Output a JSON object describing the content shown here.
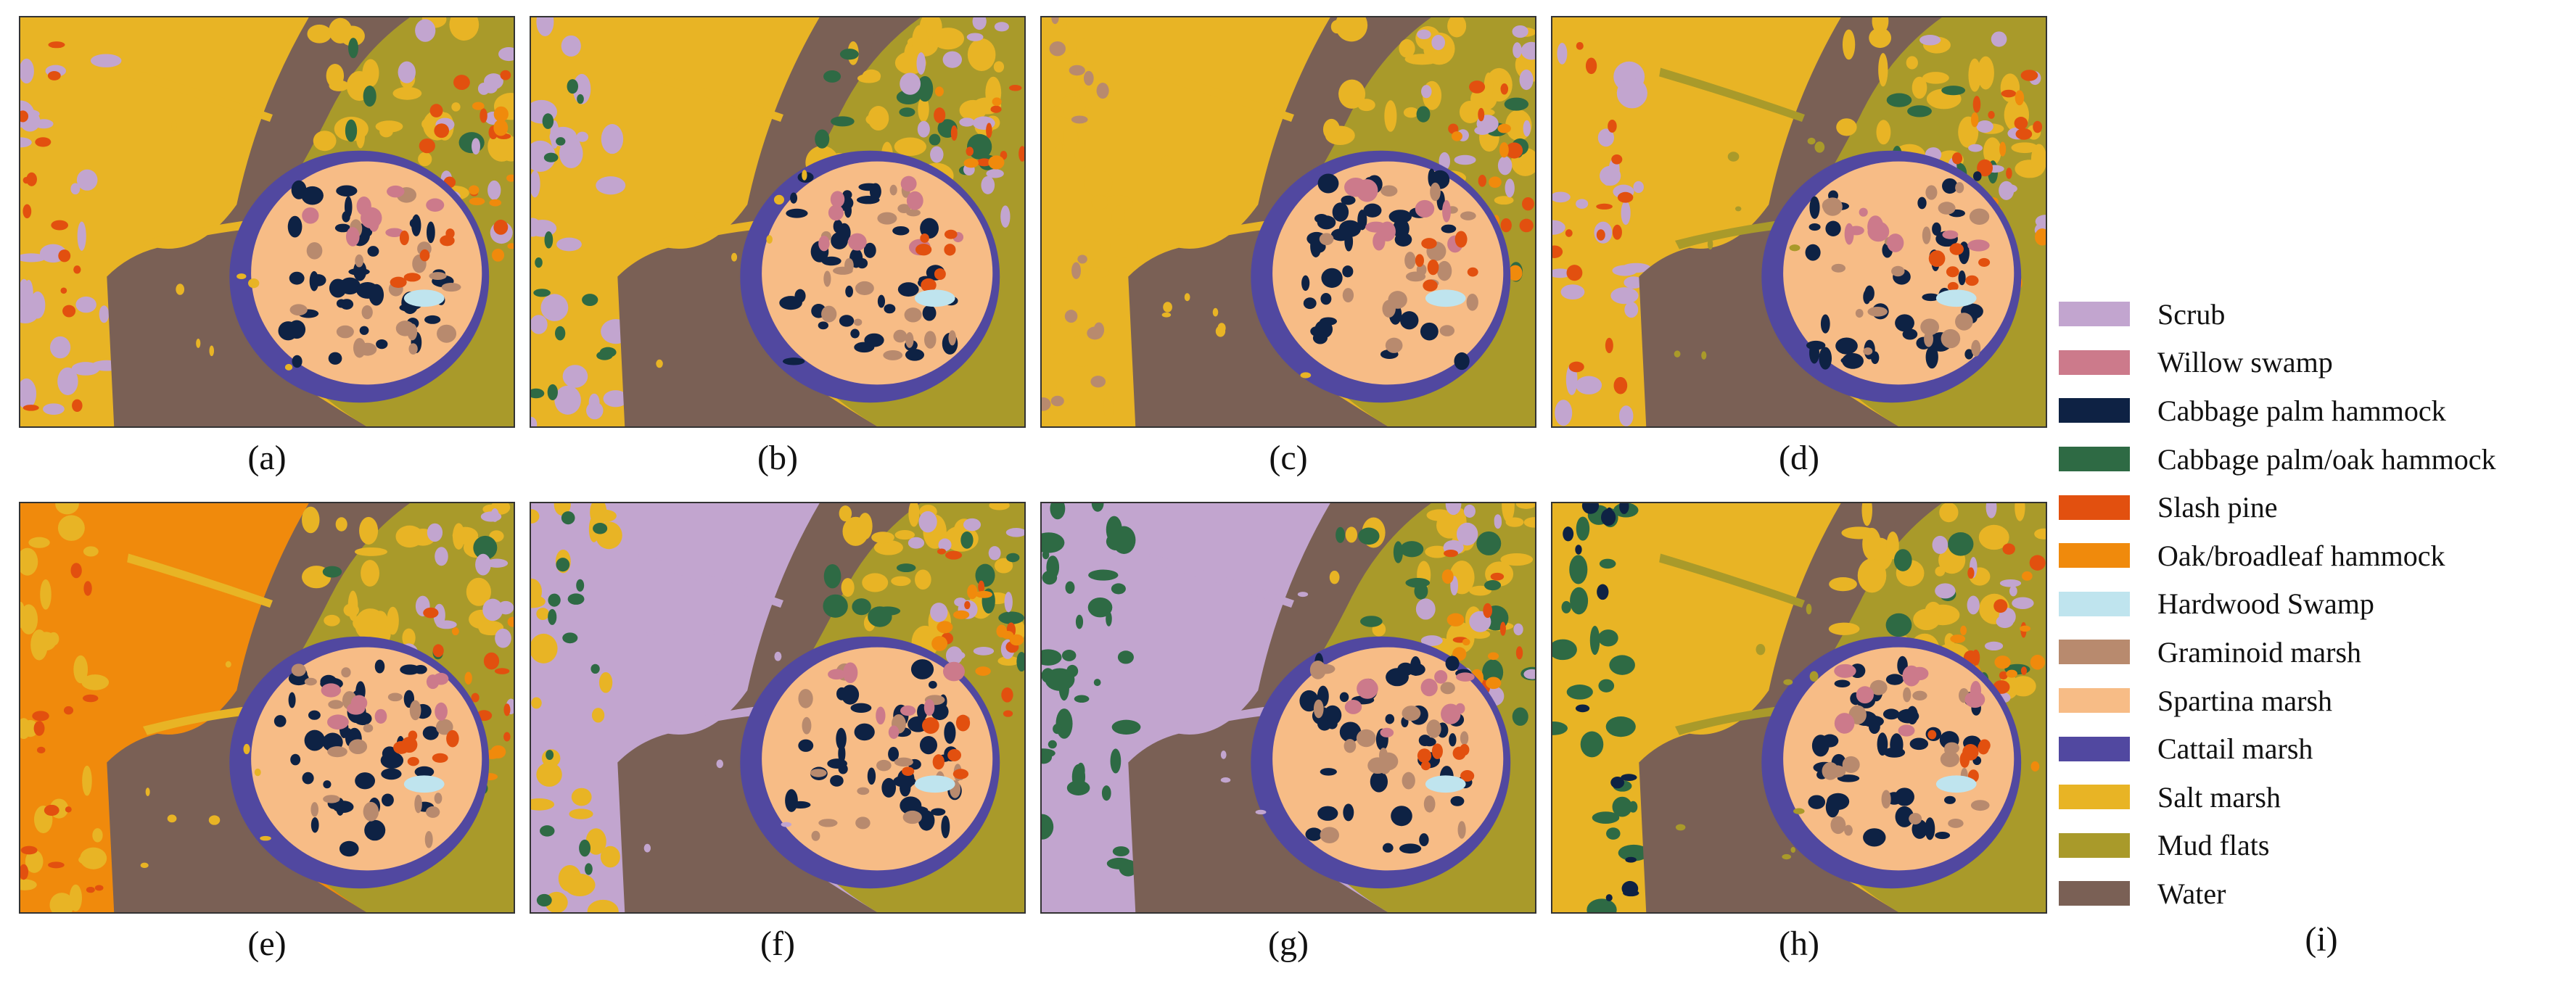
{
  "figure": {
    "panels": [
      {
        "label": "(a)",
        "variant": "a"
      },
      {
        "label": "(b)",
        "variant": "b"
      },
      {
        "label": "(c)",
        "variant": "c"
      },
      {
        "label": "(d)",
        "variant": "d"
      },
      {
        "label": "(e)",
        "variant": "e"
      },
      {
        "label": "(f)",
        "variant": "f"
      },
      {
        "label": "(g)",
        "variant": "g"
      },
      {
        "label": "(h)",
        "variant": "h"
      }
    ],
    "legend_label": "(i)",
    "legend": [
      {
        "name": "Scrub",
        "color": "#C2A5CF"
      },
      {
        "name": "Willow swamp",
        "color": "#CC7A8B"
      },
      {
        "name": "Cabbage palm hammock",
        "color": "#0E2244"
      },
      {
        "name": "Cabbage palm/oak hammock",
        "color": "#2E6A44"
      },
      {
        "name": "Slash pine",
        "color": "#E2500F"
      },
      {
        "name": "Oak/broadleaf hammock",
        "color": "#F08A0C"
      },
      {
        "name": "Hardwood Swamp",
        "color": "#BFE4EE"
      },
      {
        "name": "Graminoid marsh",
        "color": "#B88A6E"
      },
      {
        "name": "Spartina marsh",
        "color": "#F7BC86"
      },
      {
        "name": "Cattail marsh",
        "color": "#5148A0"
      },
      {
        "name": "Salt marsh",
        "color": "#E8B425"
      },
      {
        "name": "Mud flats",
        "color": "#A99A2A"
      },
      {
        "name": "Water",
        "color": "#7A6055"
      }
    ]
  }
}
